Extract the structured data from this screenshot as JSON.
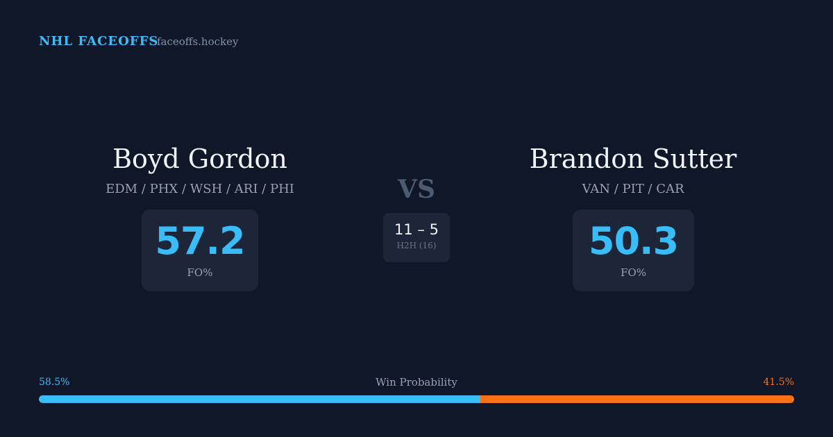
{
  "header": {
    "title": "NHL FACEOFFS",
    "site": "faceoffs.hockey"
  },
  "players": [
    {
      "name": "Boyd Gordon",
      "teams": "EDM / PHX / WSH / ARI / PHI",
      "fo_pct": 57.2,
      "fo_label": "FO%"
    },
    {
      "name": "Brandon Sutter",
      "teams": "VAN / PIT / CAR",
      "fo_pct": 50.3,
      "fo_label": "FO%"
    }
  ],
  "vs": "VS",
  "h2h": {
    "record": "11 – 5",
    "label": "H2H (16)"
  },
  "win_probability": {
    "title": "Win Probability",
    "left": {
      "value": 58.5,
      "label": "58.5%",
      "color": "#38bdf8"
    },
    "right": {
      "value": 41.5,
      "label": "41.5%",
      "color": "#f97316"
    }
  }
}
